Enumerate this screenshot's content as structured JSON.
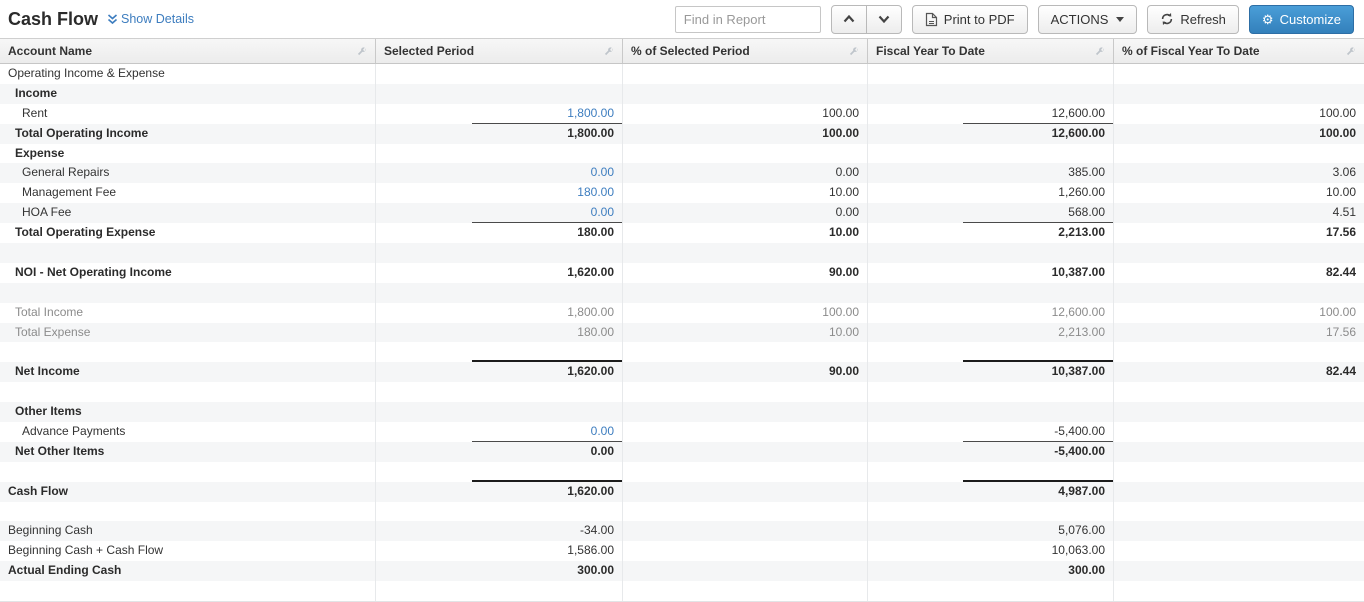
{
  "title": "Cash Flow",
  "show_details_label": "Show Details",
  "toolbar": {
    "find_placeholder": "Find in Report",
    "print_label": "Print to PDF",
    "actions_label": "ACTIONS",
    "refresh_label": "Refresh",
    "customize_label": "Customize"
  },
  "colors": {
    "link_blue": "#3d7dbf",
    "customize_button_blue": "#3380bb",
    "stripe_gray": "#f5f6f7",
    "header_gray": "#ececec"
  },
  "icons": {
    "show_details": "double-chevron-down-icon",
    "find_prev": "chevron-up-icon",
    "find_next": "chevron-down-icon",
    "print": "pdf-document-icon",
    "actions": "caret-down-icon",
    "refresh": "refresh-arrows-icon",
    "customize": "gear-icon",
    "column_tool": "wrench-icon"
  },
  "columns": [
    {
      "label": "Account Name"
    },
    {
      "label": "Selected Period"
    },
    {
      "label": "% of Selected Period"
    },
    {
      "label": "Fiscal Year To Date"
    },
    {
      "label": "% of Fiscal Year To Date"
    }
  ],
  "rows": [
    {
      "label": "Operating Income & Expense",
      "indent": 0,
      "cells": {}
    },
    {
      "label": "Income",
      "indent": 1,
      "bold": true,
      "cells": {}
    },
    {
      "label": "Rent",
      "indent": 2,
      "cells": {
        "sp": {
          "v": "1,800.00",
          "blue": true,
          "line": true
        },
        "psp": {
          "v": "100.00"
        },
        "fytd": {
          "v": "12,600.00",
          "line": true
        },
        "pfytd": {
          "v": "100.00"
        }
      }
    },
    {
      "label": "Total Operating Income",
      "indent": 1,
      "bold": true,
      "cells": {
        "sp": {
          "v": "1,800.00"
        },
        "psp": {
          "v": "100.00"
        },
        "fytd": {
          "v": "12,600.00"
        },
        "pfytd": {
          "v": "100.00"
        }
      }
    },
    {
      "label": "Expense",
      "indent": 1,
      "bold": true,
      "cells": {}
    },
    {
      "label": "General Repairs",
      "indent": 2,
      "cells": {
        "sp": {
          "v": "0.00",
          "blue": true
        },
        "psp": {
          "v": "0.00"
        },
        "fytd": {
          "v": "385.00"
        },
        "pfytd": {
          "v": "3.06"
        }
      }
    },
    {
      "label": "Management Fee",
      "indent": 2,
      "cells": {
        "sp": {
          "v": "180.00",
          "blue": true
        },
        "psp": {
          "v": "10.00"
        },
        "fytd": {
          "v": "1,260.00"
        },
        "pfytd": {
          "v": "10.00"
        }
      }
    },
    {
      "label": "HOA Fee",
      "indent": 2,
      "cells": {
        "sp": {
          "v": "0.00",
          "blue": true,
          "line": true
        },
        "psp": {
          "v": "0.00"
        },
        "fytd": {
          "v": "568.00",
          "line": true
        },
        "pfytd": {
          "v": "4.51"
        }
      }
    },
    {
      "label": "Total Operating Expense",
      "indent": 1,
      "bold": true,
      "cells": {
        "sp": {
          "v": "180.00"
        },
        "psp": {
          "v": "10.00"
        },
        "fytd": {
          "v": "2,213.00"
        },
        "pfytd": {
          "v": "17.56"
        }
      }
    },
    {
      "label": "",
      "indent": 0,
      "cells": {}
    },
    {
      "label": "NOI - Net Operating Income",
      "indent": 1,
      "bold": true,
      "cells": {
        "sp": {
          "v": "1,620.00"
        },
        "psp": {
          "v": "90.00"
        },
        "fytd": {
          "v": "10,387.00"
        },
        "pfytd": {
          "v": "82.44"
        }
      }
    },
    {
      "label": "",
      "indent": 0,
      "cells": {}
    },
    {
      "label": "Total Income",
      "indent": 1,
      "muted": true,
      "cells": {
        "sp": {
          "v": "1,800.00"
        },
        "psp": {
          "v": "100.00"
        },
        "fytd": {
          "v": "12,600.00"
        },
        "pfytd": {
          "v": "100.00"
        }
      }
    },
    {
      "label": "Total Expense",
      "indent": 1,
      "muted": true,
      "cells": {
        "sp": {
          "v": "180.00"
        },
        "psp": {
          "v": "10.00"
        },
        "fytd": {
          "v": "2,213.00"
        },
        "pfytd": {
          "v": "17.56"
        }
      }
    },
    {
      "label": "",
      "indent": 0,
      "rule": true,
      "cells": {}
    },
    {
      "label": "Net Income",
      "indent": 1,
      "bold": true,
      "cells": {
        "sp": {
          "v": "1,620.00"
        },
        "psp": {
          "v": "90.00"
        },
        "fytd": {
          "v": "10,387.00"
        },
        "pfytd": {
          "v": "82.44"
        }
      }
    },
    {
      "label": "",
      "indent": 0,
      "cells": {}
    },
    {
      "label": "Other Items",
      "indent": 1,
      "bold": true,
      "cells": {}
    },
    {
      "label": "Advance Payments",
      "indent": 2,
      "cells": {
        "sp": {
          "v": "0.00",
          "blue": true,
          "line": true
        },
        "fytd": {
          "v": "-5,400.00",
          "line": true
        }
      }
    },
    {
      "label": "Net Other Items",
      "indent": 1,
      "bold": true,
      "cells": {
        "sp": {
          "v": "0.00"
        },
        "fytd": {
          "v": "-5,400.00"
        }
      }
    },
    {
      "label": "",
      "indent": 0,
      "rule": true,
      "cells": {}
    },
    {
      "label": "Cash Flow",
      "indent": 0,
      "bold": true,
      "cells": {
        "sp": {
          "v": "1,620.00"
        },
        "fytd": {
          "v": "4,987.00"
        }
      }
    },
    {
      "label": "",
      "indent": 0,
      "cells": {}
    },
    {
      "label": "Beginning Cash",
      "indent": 0,
      "cells": {
        "sp": {
          "v": "-34.00"
        },
        "fytd": {
          "v": "5,076.00"
        }
      }
    },
    {
      "label": "Beginning Cash + Cash Flow",
      "indent": 0,
      "cells": {
        "sp": {
          "v": "1,586.00"
        },
        "fytd": {
          "v": "10,063.00"
        }
      }
    },
    {
      "label": "Actual Ending Cash",
      "indent": 0,
      "bold": true,
      "cells": {
        "sp": {
          "v": "300.00"
        },
        "fytd": {
          "v": "300.00"
        }
      }
    },
    {
      "label": "",
      "indent": 0,
      "cells": {}
    }
  ]
}
